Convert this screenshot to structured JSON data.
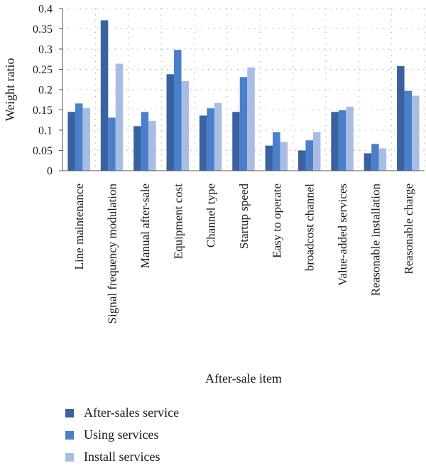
{
  "chart_data": {
    "type": "bar",
    "title": "",
    "xlabel": "After-sale item",
    "ylabel": "Weight ratio",
    "ylim": [
      0,
      0.4
    ],
    "yticks": [
      "0",
      "0.05",
      "0.1",
      "0.15",
      "0.2",
      "0.25",
      "0.3",
      "0.35",
      "0.4"
    ],
    "grid": true,
    "legend": "bottom-left",
    "categories": [
      "Line maintenance",
      "Signal frequency modulation",
      "Manual after-sale",
      "Equipment cost",
      "Channel type",
      "Startup speed",
      "Easy to operate",
      "broadcost channel",
      "Value-added services",
      "Reasonable installation",
      "Reasonable charge"
    ],
    "series": [
      {
        "name": "After-sales service",
        "color": "#3a62a0",
        "values": [
          0.145,
          0.371,
          0.11,
          0.238,
          0.136,
          0.145,
          0.062,
          0.05,
          0.145,
          0.043,
          0.258
        ]
      },
      {
        "name": "Using services",
        "color": "#4a7fcc",
        "values": [
          0.166,
          0.131,
          0.145,
          0.298,
          0.154,
          0.231,
          0.095,
          0.075,
          0.149,
          0.066,
          0.197
        ]
      },
      {
        "name": "Install services",
        "color": "#a9bde3",
        "values": [
          0.155,
          0.264,
          0.123,
          0.221,
          0.167,
          0.255,
          0.071,
          0.095,
          0.158,
          0.055,
          0.185
        ]
      }
    ]
  }
}
